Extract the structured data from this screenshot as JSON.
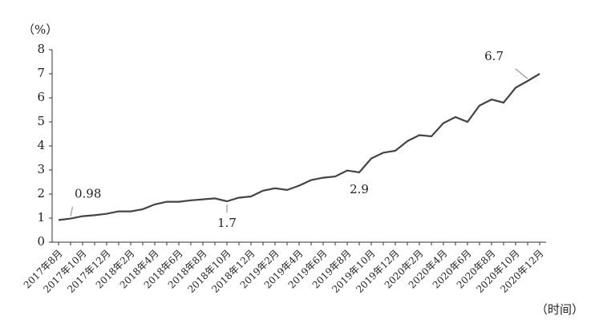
{
  "chart_data": {
    "type": "line",
    "y_label": "（%）",
    "x_label": "（时间）",
    "categories": [
      "2017年8月",
      null,
      "2017年10月",
      null,
      "2017年12月",
      null,
      "2018年2月",
      null,
      "2018年4月",
      null,
      "2018年6月",
      null,
      "2018年8月",
      null,
      "2018年10月",
      null,
      "2018年12月",
      null,
      "2019年2月",
      null,
      "2019年4月",
      null,
      "2019年6月",
      null,
      "2019年8月",
      null,
      "2019年10月",
      null,
      "2019年12月",
      null,
      "2020年2月",
      null,
      "2020年4月",
      null,
      "2020年6月",
      null,
      "2020年8月",
      null,
      "2020年10月",
      null,
      "2020年12月"
    ],
    "values": [
      0.92,
      0.98,
      1.08,
      1.12,
      1.18,
      1.28,
      1.28,
      1.37,
      1.57,
      1.68,
      1.68,
      1.74,
      1.78,
      1.82,
      1.7,
      1.85,
      1.9,
      2.14,
      2.24,
      2.17,
      2.35,
      2.58,
      2.68,
      2.73,
      2.98,
      2.9,
      3.48,
      3.72,
      3.8,
      4.2,
      4.45,
      4.4,
      4.95,
      5.2,
      5.0,
      5.68,
      5.93,
      5.8,
      6.42,
      6.7,
      7.0
    ],
    "value_labels": [
      null,
      "0.98",
      null,
      null,
      null,
      null,
      null,
      null,
      null,
      null,
      null,
      null,
      null,
      null,
      "1.7",
      null,
      null,
      null,
      null,
      null,
      null,
      null,
      null,
      null,
      null,
      "2.9",
      null,
      null,
      null,
      null,
      null,
      null,
      null,
      null,
      null,
      null,
      null,
      null,
      null,
      "6.7",
      null
    ],
    "color": "#444444",
    "ylim": [
      0,
      8
    ],
    "yticks": [
      0,
      1,
      2,
      3,
      4,
      5,
      6,
      7,
      8
    ],
    "grid": false
  }
}
